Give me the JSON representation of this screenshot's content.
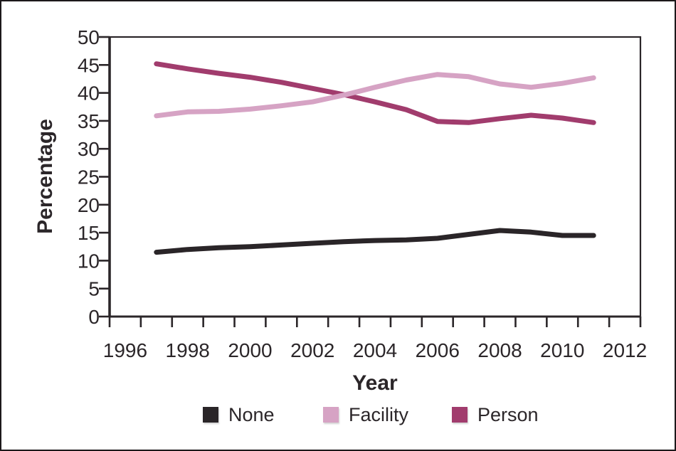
{
  "chart_data": {
    "type": "line",
    "title": "",
    "xlabel": "Year",
    "ylabel": "Percentage",
    "axis_color": "#2b2629",
    "text_color": "#2b2629",
    "line_width": 7,
    "grid": false,
    "legend_position": "bottom",
    "x_axis": {
      "min": 1995.5,
      "max": 2012.5,
      "boundary_tick_step": 1,
      "label_years": [
        1996,
        1998,
        2000,
        2002,
        2004,
        2006,
        2008,
        2010,
        2012
      ]
    },
    "y_axis": {
      "min": 0,
      "max": 50,
      "ticks": [
        0,
        5,
        10,
        15,
        20,
        25,
        30,
        35,
        40,
        45,
        50
      ]
    },
    "x": [
      1997,
      1998,
      1999,
      2000,
      2001,
      2002,
      2003,
      2004,
      2005,
      2006,
      2007,
      2008,
      2009,
      2010,
      2011
    ],
    "series": [
      {
        "name": "None",
        "color": "#2a2528",
        "values": [
          11.5,
          12.0,
          12.3,
          12.5,
          12.8,
          13.1,
          13.4,
          13.6,
          13.7,
          14.0,
          14.7,
          15.4,
          15.1,
          14.5,
          14.5
        ]
      },
      {
        "name": "Facility",
        "color": "#d6a3c4",
        "values": [
          35.9,
          36.6,
          36.7,
          37.1,
          37.7,
          38.4,
          39.6,
          41.0,
          42.3,
          43.3,
          42.9,
          41.6,
          41.0,
          41.7,
          42.7
        ]
      },
      {
        "name": "Person",
        "color": "#a13c6d",
        "values": [
          45.2,
          44.3,
          43.5,
          42.8,
          41.9,
          40.8,
          39.7,
          38.4,
          37.0,
          34.9,
          34.7,
          35.4,
          36.0,
          35.5,
          34.7
        ]
      }
    ]
  }
}
